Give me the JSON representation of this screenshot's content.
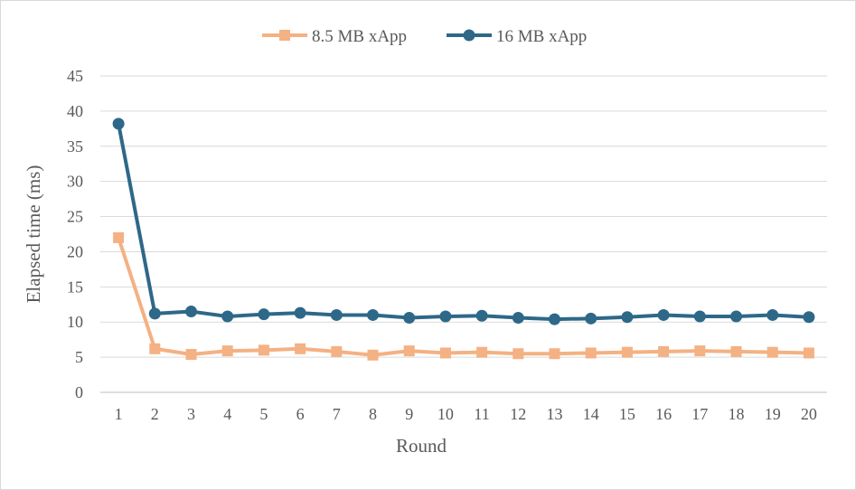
{
  "chart_data": {
    "type": "line",
    "title": "",
    "xlabel": "Round",
    "ylabel": "Elapsed time (ms)",
    "categories": [
      "1",
      "2",
      "3",
      "4",
      "5",
      "6",
      "7",
      "8",
      "9",
      "10",
      "11",
      "12",
      "13",
      "14",
      "15",
      "16",
      "17",
      "18",
      "19",
      "20"
    ],
    "ylim": [
      0,
      45
    ],
    "yticks": [
      0,
      5,
      10,
      15,
      20,
      25,
      30,
      35,
      40,
      45
    ],
    "grid": true,
    "legend_position": "top",
    "series": [
      {
        "name": "8.5 MB xApp",
        "color": "#f4b183",
        "marker": "square",
        "values": [
          22.0,
          6.2,
          5.4,
          5.9,
          6.0,
          6.2,
          5.8,
          5.3,
          5.9,
          5.6,
          5.7,
          5.5,
          5.5,
          5.6,
          5.7,
          5.8,
          5.9,
          5.8,
          5.7,
          5.6
        ]
      },
      {
        "name": "16 MB xApp",
        "color": "#2e6888",
        "marker": "circle",
        "values": [
          38.2,
          11.2,
          11.5,
          10.8,
          11.1,
          11.3,
          11.0,
          11.0,
          10.6,
          10.8,
          10.9,
          10.6,
          10.4,
          10.5,
          10.7,
          11.0,
          10.8,
          10.8,
          11.0,
          10.7
        ]
      }
    ]
  }
}
